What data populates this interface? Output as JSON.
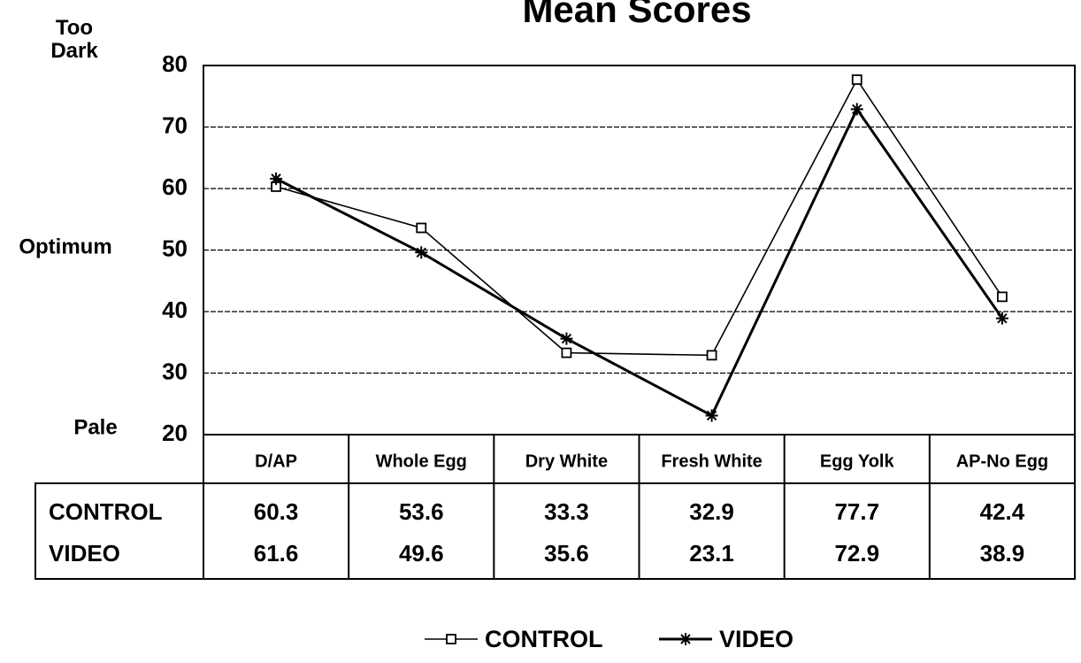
{
  "chart_data": {
    "type": "line",
    "title": "Mean Scores",
    "annotations": [
      "Too Dark",
      "Optimum",
      "Pale"
    ],
    "categories": [
      "D/AP",
      "Whole Egg",
      "Dry White",
      "Fresh White",
      "Egg Yolk",
      "AP-No Egg"
    ],
    "series": [
      {
        "name": "CONTROL",
        "color": "#000000",
        "marker": "square",
        "values": [
          60.3,
          53.6,
          33.3,
          32.9,
          77.7,
          42.4
        ]
      },
      {
        "name": "VIDEO",
        "color": "#000000",
        "marker": "asterisk",
        "values": [
          61.6,
          49.6,
          35.6,
          23.1,
          72.9,
          38.9
        ]
      }
    ],
    "ylim": [
      20,
      80
    ],
    "yticks": [
      20,
      30,
      40,
      50,
      60,
      70,
      80
    ],
    "grid": true,
    "legend": "bottom"
  }
}
